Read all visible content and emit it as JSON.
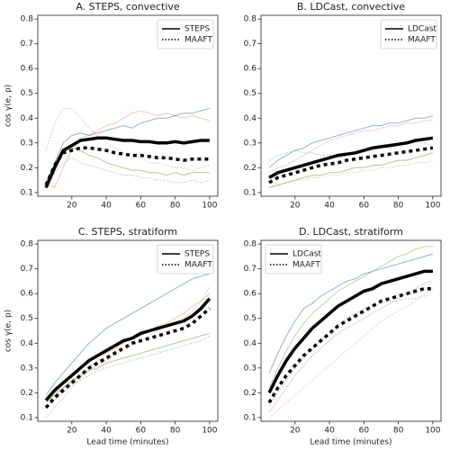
{
  "chart_data": [
    {
      "type": "line",
      "title": "A. STEPS, convective",
      "ylabel": "cos γ(e, p)",
      "x": [
        5,
        10,
        15,
        20,
        25,
        30,
        35,
        40,
        45,
        50,
        55,
        60,
        65,
        70,
        75,
        80,
        85,
        90,
        95,
        100
      ],
      "xlim": [
        0.25,
        104.75
      ],
      "xticks": [
        20,
        40,
        60,
        80,
        100
      ],
      "ylim": [
        0.085,
        0.815
      ],
      "yticks": [
        0.1,
        0.2,
        0.3,
        0.4,
        0.5,
        0.6,
        0.7,
        0.8
      ],
      "legend": "upper right",
      "series": [
        {
          "color": "#e8a07a",
          "style": "solid",
          "width": 1,
          "values": [
            0.13,
            0.12,
            0.2,
            0.27,
            0.32,
            0.33,
            0.35,
            0.37,
            0.38,
            0.4,
            0.42,
            0.43,
            0.42,
            0.41,
            0.42,
            0.41,
            0.4,
            0.41,
            0.4,
            0.39
          ]
        },
        {
          "color": "#4a7fa8",
          "style": "solid",
          "width": 1,
          "values": [
            0.14,
            0.22,
            0.3,
            0.33,
            0.34,
            0.33,
            0.34,
            0.35,
            0.36,
            0.37,
            0.36,
            0.38,
            0.39,
            0.4,
            0.4,
            0.41,
            0.42,
            0.42,
            0.43,
            0.44
          ]
        },
        {
          "color": "#7aa05a",
          "style": "solid",
          "width": 1,
          "values": [
            0.12,
            0.2,
            0.26,
            0.28,
            0.27,
            0.25,
            0.24,
            0.22,
            0.21,
            0.2,
            0.19,
            0.19,
            0.18,
            0.18,
            0.17,
            0.18,
            0.17,
            0.18,
            0.18,
            0.18
          ]
        },
        {
          "color": "#c58a8a",
          "style": "dotted",
          "width": 1,
          "values": [
            0.27,
            0.38,
            0.44,
            0.44,
            0.4,
            0.36,
            0.33,
            0.3,
            0.28,
            0.26,
            0.25,
            0.24,
            0.22,
            0.22,
            0.21,
            0.2,
            0.2,
            0.19,
            0.2,
            0.21
          ]
        },
        {
          "color": "#6a8fc0",
          "style": "dotted",
          "width": 1,
          "values": [
            0.12,
            0.18,
            0.22,
            0.24,
            0.22,
            0.21,
            0.2,
            0.19,
            0.18,
            0.17,
            0.17,
            0.16,
            0.16,
            0.15,
            0.15,
            0.14,
            0.14,
            0.15,
            0.14,
            0.15
          ]
        },
        {
          "name": "STEPS",
          "color": "#000000",
          "style": "solid",
          "width": 3.5,
          "values": [
            0.12,
            0.2,
            0.27,
            0.29,
            0.31,
            0.315,
            0.32,
            0.32,
            0.315,
            0.31,
            0.31,
            0.305,
            0.305,
            0.3,
            0.3,
            0.305,
            0.3,
            0.305,
            0.31,
            0.31
          ]
        },
        {
          "name": "MAAFT",
          "color": "#000000",
          "style": "dotted",
          "width": 3.5,
          "values": [
            0.13,
            0.21,
            0.26,
            0.27,
            0.28,
            0.28,
            0.275,
            0.27,
            0.26,
            0.255,
            0.25,
            0.25,
            0.245,
            0.24,
            0.24,
            0.235,
            0.23,
            0.235,
            0.235,
            0.235
          ]
        }
      ]
    },
    {
      "type": "line",
      "title": "B. LDCast, convective",
      "x": [
        5,
        10,
        15,
        20,
        25,
        30,
        35,
        40,
        45,
        50,
        55,
        60,
        65,
        70,
        75,
        80,
        85,
        90,
        95,
        100
      ],
      "xlim": [
        0.25,
        104.75
      ],
      "xticks": [
        20,
        40,
        60,
        80,
        100
      ],
      "ylim": [
        0.085,
        0.815
      ],
      "yticks": [
        0.1,
        0.2,
        0.3,
        0.4,
        0.5,
        0.6,
        0.7,
        0.8
      ],
      "legend": "upper right",
      "series": [
        {
          "color": "#4a7fa8",
          "style": "solid",
          "width": 1,
          "values": [
            0.2,
            0.23,
            0.25,
            0.27,
            0.28,
            0.3,
            0.31,
            0.32,
            0.33,
            0.34,
            0.35,
            0.36,
            0.37,
            0.37,
            0.38,
            0.38,
            0.39,
            0.4,
            0.4,
            0.41
          ]
        },
        {
          "color": "#e8b0c0",
          "style": "solid",
          "width": 1,
          "values": [
            0.18,
            0.2,
            0.21,
            0.23,
            0.25,
            0.27,
            0.29,
            0.31,
            0.32,
            0.33,
            0.34,
            0.35,
            0.35,
            0.36,
            0.37,
            0.37,
            0.38,
            0.38,
            0.39,
            0.39
          ]
        },
        {
          "color": "#7aa05a",
          "style": "solid",
          "width": 1,
          "values": [
            0.12,
            0.13,
            0.14,
            0.15,
            0.16,
            0.17,
            0.17,
            0.18,
            0.18,
            0.19,
            0.2,
            0.2,
            0.21,
            0.21,
            0.22,
            0.23,
            0.23,
            0.24,
            0.25,
            0.26
          ]
        },
        {
          "color": "#6a8fc0",
          "style": "dotted",
          "width": 1,
          "values": [
            0.23,
            0.25,
            0.26,
            0.27,
            0.26,
            0.26,
            0.25,
            0.25,
            0.24,
            0.25,
            0.26,
            0.27,
            0.27,
            0.28,
            0.28,
            0.29,
            0.3,
            0.3,
            0.3,
            0.29
          ]
        },
        {
          "color": "#c0a060",
          "style": "dotted",
          "width": 1,
          "values": [
            0.12,
            0.13,
            0.14,
            0.15,
            0.15,
            0.16,
            0.16,
            0.17,
            0.17,
            0.18,
            0.18,
            0.19,
            0.19,
            0.2,
            0.2,
            0.21,
            0.21,
            0.22,
            0.22,
            0.23
          ]
        },
        {
          "name": "LDCast",
          "color": "#000000",
          "style": "solid",
          "width": 3.5,
          "values": [
            0.16,
            0.18,
            0.19,
            0.2,
            0.21,
            0.22,
            0.23,
            0.24,
            0.25,
            0.255,
            0.26,
            0.27,
            0.28,
            0.285,
            0.29,
            0.295,
            0.3,
            0.31,
            0.315,
            0.32
          ]
        },
        {
          "name": "MAAFT",
          "color": "#000000",
          "style": "dotted",
          "width": 3.5,
          "values": [
            0.14,
            0.16,
            0.17,
            0.18,
            0.19,
            0.2,
            0.21,
            0.215,
            0.22,
            0.23,
            0.235,
            0.24,
            0.245,
            0.25,
            0.255,
            0.26,
            0.265,
            0.27,
            0.275,
            0.28
          ]
        }
      ]
    },
    {
      "type": "line",
      "title": "C. STEPS, stratiform",
      "ylabel": "cos γ(e, p)",
      "xlabel": "Lead time (minutes)",
      "x": [
        5,
        10,
        15,
        20,
        25,
        30,
        35,
        40,
        45,
        50,
        55,
        60,
        65,
        70,
        75,
        80,
        85,
        90,
        95,
        100
      ],
      "xlim": [
        0.25,
        104.75
      ],
      "xticks": [
        20,
        40,
        60,
        80,
        100
      ],
      "ylim": [
        0.085,
        0.815
      ],
      "yticks": [
        0.1,
        0.2,
        0.3,
        0.4,
        0.5,
        0.6,
        0.7,
        0.8
      ],
      "legend": "upper right",
      "series": [
        {
          "color": "#4a7fa8",
          "style": "solid",
          "width": 1,
          "values": [
            0.19,
            0.24,
            0.28,
            0.32,
            0.36,
            0.4,
            0.43,
            0.46,
            0.48,
            0.5,
            0.52,
            0.54,
            0.56,
            0.58,
            0.6,
            0.62,
            0.64,
            0.66,
            0.67,
            0.68
          ]
        },
        {
          "color": "#e8a07a",
          "style": "solid",
          "width": 1,
          "values": [
            0.16,
            0.2,
            0.22,
            0.24,
            0.27,
            0.3,
            0.33,
            0.36,
            0.38,
            0.4,
            0.42,
            0.43,
            0.45,
            0.47,
            0.48,
            0.5,
            0.52,
            0.55,
            0.57,
            0.6
          ]
        },
        {
          "color": "#7aa05a",
          "style": "solid",
          "width": 1,
          "values": [
            0.16,
            0.19,
            0.22,
            0.25,
            0.27,
            0.29,
            0.3,
            0.32,
            0.33,
            0.34,
            0.35,
            0.36,
            0.37,
            0.38,
            0.39,
            0.4,
            0.41,
            0.42,
            0.43,
            0.44
          ]
        },
        {
          "color": "#c58a8a",
          "style": "dotted",
          "width": 1,
          "values": [
            0.1,
            0.14,
            0.18,
            0.22,
            0.26,
            0.29,
            0.31,
            0.33,
            0.35,
            0.37,
            0.39,
            0.41,
            0.43,
            0.45,
            0.47,
            0.48,
            0.5,
            0.53,
            0.57,
            0.63
          ]
        },
        {
          "color": "#6a8fc0",
          "style": "dotted",
          "width": 1,
          "values": [
            0.14,
            0.17,
            0.2,
            0.23,
            0.25,
            0.27,
            0.29,
            0.3,
            0.31,
            0.32,
            0.33,
            0.34,
            0.35,
            0.36,
            0.37,
            0.38,
            0.39,
            0.4,
            0.41,
            0.43
          ]
        },
        {
          "name": "STEPS",
          "color": "#000000",
          "style": "solid",
          "width": 3.5,
          "values": [
            0.17,
            0.21,
            0.24,
            0.27,
            0.3,
            0.33,
            0.35,
            0.37,
            0.39,
            0.41,
            0.42,
            0.44,
            0.45,
            0.46,
            0.47,
            0.48,
            0.49,
            0.51,
            0.54,
            0.58
          ]
        },
        {
          "name": "MAAFT",
          "color": "#000000",
          "style": "dotted",
          "width": 3.5,
          "values": [
            0.14,
            0.18,
            0.21,
            0.24,
            0.27,
            0.3,
            0.32,
            0.34,
            0.36,
            0.38,
            0.4,
            0.41,
            0.42,
            0.43,
            0.44,
            0.45,
            0.46,
            0.48,
            0.51,
            0.54
          ]
        }
      ]
    },
    {
      "type": "line",
      "title": "D. LDCast, stratiform",
      "xlabel": "Lead time (minutes)",
      "x": [
        5,
        10,
        15,
        20,
        25,
        30,
        35,
        40,
        45,
        50,
        55,
        60,
        65,
        70,
        75,
        80,
        85,
        90,
        95,
        100
      ],
      "xlim": [
        0.25,
        104.75
      ],
      "xticks": [
        20,
        40,
        60,
        80,
        100
      ],
      "ylim": [
        0.085,
        0.815
      ],
      "yticks": [
        0.1,
        0.2,
        0.3,
        0.4,
        0.5,
        0.6,
        0.7,
        0.8
      ],
      "legend": "upper left",
      "series": [
        {
          "color": "#4a7fa8",
          "style": "solid",
          "width": 1,
          "values": [
            0.28,
            0.36,
            0.43,
            0.49,
            0.54,
            0.56,
            0.59,
            0.61,
            0.63,
            0.65,
            0.66,
            0.68,
            0.69,
            0.7,
            0.71,
            0.72,
            0.73,
            0.74,
            0.75,
            0.76
          ]
        },
        {
          "color": "#a0b070",
          "style": "solid",
          "width": 1,
          "values": [
            0.22,
            0.3,
            0.37,
            0.43,
            0.48,
            0.52,
            0.55,
            0.58,
            0.61,
            0.63,
            0.65,
            0.67,
            0.69,
            0.71,
            0.73,
            0.75,
            0.76,
            0.78,
            0.79,
            0.79
          ]
        },
        {
          "color": "#e8b0c0",
          "style": "solid",
          "width": 1,
          "values": [
            0.12,
            0.17,
            0.22,
            0.27,
            0.31,
            0.35,
            0.38,
            0.41,
            0.44,
            0.46,
            0.48,
            0.5,
            0.52,
            0.54,
            0.56,
            0.58,
            0.6,
            0.62,
            0.64,
            0.65
          ]
        },
        {
          "color": "#e8a07a",
          "style": "dotted",
          "width": 1,
          "values": [
            0.1,
            0.13,
            0.16,
            0.19,
            0.22,
            0.25,
            0.28,
            0.31,
            0.34,
            0.37,
            0.4,
            0.43,
            0.46,
            0.49,
            0.51,
            0.53,
            0.55,
            0.57,
            0.6,
            0.62
          ]
        },
        {
          "color": "#6a8fc0",
          "style": "dotted",
          "width": 1,
          "values": [
            0.15,
            0.2,
            0.25,
            0.3,
            0.34,
            0.38,
            0.41,
            0.44,
            0.47,
            0.5,
            0.52,
            0.54,
            0.55,
            0.56,
            0.57,
            0.57,
            0.58,
            0.58,
            0.59,
            0.6
          ]
        },
        {
          "name": "LDCast",
          "color": "#000000",
          "style": "solid",
          "width": 3.5,
          "values": [
            0.2,
            0.27,
            0.33,
            0.38,
            0.42,
            0.46,
            0.49,
            0.52,
            0.55,
            0.57,
            0.59,
            0.61,
            0.62,
            0.64,
            0.65,
            0.66,
            0.67,
            0.68,
            0.69,
            0.69
          ]
        },
        {
          "name": "MAAFT",
          "color": "#000000",
          "style": "dotted",
          "width": 3.5,
          "values": [
            0.16,
            0.22,
            0.27,
            0.31,
            0.35,
            0.38,
            0.41,
            0.44,
            0.47,
            0.49,
            0.51,
            0.53,
            0.55,
            0.57,
            0.58,
            0.59,
            0.6,
            0.61,
            0.62,
            0.62
          ]
        }
      ]
    }
  ]
}
